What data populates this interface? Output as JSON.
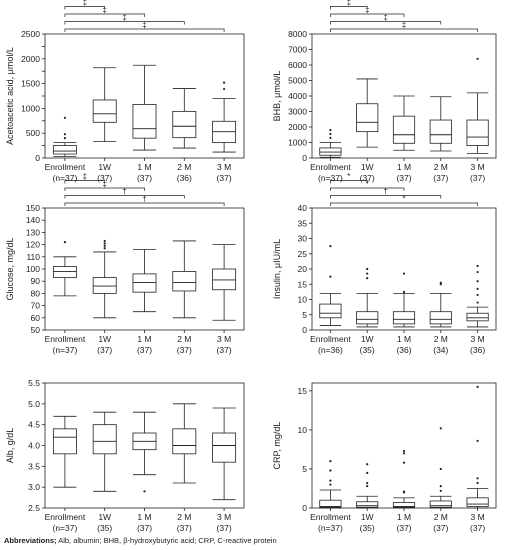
{
  "footer": {
    "label": "Abbreviations;",
    "text": "Alb, albumin; BHB, β-hydroxybutyric acid; CRP, C-reactive protein"
  },
  "chart_data": [
    {
      "type": "box",
      "ylabel": "Acetoacetic acid, μmol/L",
      "ylim": [
        0,
        2500
      ],
      "yticks": [
        0,
        250,
        500,
        750,
        1000,
        1250,
        1500,
        1750,
        2000,
        2250,
        2500
      ],
      "yticklabels": [
        "0",
        "",
        "500",
        "",
        "1000",
        "",
        "1500",
        "",
        "2000",
        "",
        "2500"
      ],
      "categories": [
        "Enrollment",
        "1W",
        "1 M",
        "2 M",
        "3 M"
      ],
      "n_labels": [
        "(n=37)",
        "(37)",
        "(37)",
        "(36)",
        "(37)"
      ],
      "boxes": [
        {
          "wlo": 30,
          "q1": 80,
          "med": 140,
          "q3": 250,
          "whi": 310,
          "outliers": [
            400,
            480,
            810
          ]
        },
        {
          "wlo": 330,
          "q1": 720,
          "med": 890,
          "q3": 1170,
          "whi": 1820,
          "outliers": []
        },
        {
          "wlo": 160,
          "q1": 400,
          "med": 590,
          "q3": 1080,
          "whi": 1870,
          "outliers": []
        },
        {
          "wlo": 200,
          "q1": 410,
          "med": 640,
          "q3": 940,
          "whi": 1400,
          "outliers": []
        },
        {
          "wlo": 120,
          "q1": 310,
          "med": 530,
          "q3": 740,
          "whi": 1200,
          "outliers": [
            1390,
            1520
          ]
        }
      ],
      "brackets": [
        {
          "to": 1,
          "sig": "‡"
        },
        {
          "to": 2,
          "sig": "‡"
        },
        {
          "to": 3,
          "sig": "‡"
        },
        {
          "to": 4,
          "sig": "‡"
        }
      ]
    },
    {
      "type": "box",
      "ylabel": "BHB, μmol/L",
      "ylim": [
        0,
        8000
      ],
      "yticks": [
        0,
        1000,
        2000,
        3000,
        4000,
        5000,
        6000,
        7000,
        8000
      ],
      "yticklabels": [
        "0",
        "1000",
        "2000",
        "3000",
        "4000",
        "5000",
        "6000",
        "7000",
        "8000"
      ],
      "categories": [
        "Enrollment",
        "1W",
        "1 M",
        "2 M",
        "3 M"
      ],
      "n_labels": [
        "(n=37)",
        "(37)",
        "(37)",
        "(37)",
        "(37)"
      ],
      "boxes": [
        {
          "wlo": 50,
          "q1": 180,
          "med": 380,
          "q3": 650,
          "whi": 1000,
          "outliers": [
            1300,
            1550,
            1800
          ]
        },
        {
          "wlo": 700,
          "q1": 1700,
          "med": 2300,
          "q3": 3500,
          "whi": 5100,
          "outliers": []
        },
        {
          "wlo": 500,
          "q1": 950,
          "med": 1500,
          "q3": 2700,
          "whi": 4000,
          "outliers": []
        },
        {
          "wlo": 450,
          "q1": 950,
          "med": 1500,
          "q3": 2450,
          "whi": 3950,
          "outliers": []
        },
        {
          "wlo": 300,
          "q1": 800,
          "med": 1350,
          "q3": 2450,
          "whi": 4200,
          "outliers": [
            6400
          ]
        }
      ],
      "brackets": [
        {
          "to": 1,
          "sig": "‡"
        },
        {
          "to": 2,
          "sig": "‡"
        },
        {
          "to": 3,
          "sig": "‡"
        },
        {
          "to": 4,
          "sig": "‡"
        }
      ]
    },
    {
      "type": "box",
      "ylabel": "Glucose, mg/dL",
      "ylim": [
        50,
        150
      ],
      "yticks": [
        50,
        60,
        70,
        80,
        90,
        100,
        110,
        120,
        130,
        140,
        150
      ],
      "yticklabels": [
        "50",
        "60",
        "70",
        "80",
        "90",
        "100",
        "110",
        "120",
        "130",
        "140",
        "150"
      ],
      "categories": [
        "Enrollment",
        "1W",
        "1 M",
        "2 M",
        "3 M"
      ],
      "n_labels": [
        "(n=37)",
        "(37)",
        "(37)",
        "(37)",
        "(37)"
      ],
      "boxes": [
        {
          "wlo": 78,
          "q1": 93,
          "med": 98,
          "q3": 102,
          "whi": 110,
          "outliers": [
            122
          ]
        },
        {
          "wlo": 60,
          "q1": 80,
          "med": 86,
          "q3": 93,
          "whi": 114,
          "outliers": [
            117,
            119,
            121,
            123
          ]
        },
        {
          "wlo": 65,
          "q1": 81,
          "med": 89,
          "q3": 96,
          "whi": 116,
          "outliers": []
        },
        {
          "wlo": 60,
          "q1": 82,
          "med": 89,
          "q3": 98,
          "whi": 123,
          "outliers": []
        },
        {
          "wlo": 58,
          "q1": 83,
          "med": 91,
          "q3": 100,
          "whi": 120,
          "outliers": []
        }
      ],
      "brackets": [
        {
          "to": 1,
          "sig": "‡"
        },
        {
          "to": 2,
          "sig": "‡"
        },
        {
          "to": 3,
          "sig": "†"
        },
        {
          "to": 4,
          "sig": "†"
        }
      ]
    },
    {
      "type": "box",
      "ylabel": "Insulin, μIU/mL",
      "ylim": [
        0,
        40
      ],
      "yticks": [
        0,
        5,
        10,
        15,
        20,
        25,
        30,
        35,
        40
      ],
      "yticklabels": [
        "0",
        "5",
        "10",
        "15",
        "20",
        "25",
        "30",
        "35",
        "40"
      ],
      "categories": [
        "Enrollment",
        "1W",
        "1 M",
        "2 M",
        "3 M"
      ],
      "n_labels": [
        "(n=36)",
        "(35)",
        "(36)",
        "(34)",
        "(36)"
      ],
      "boxes": [
        {
          "wlo": 1.5,
          "q1": 4.0,
          "med": 5.5,
          "q3": 8.5,
          "whi": 12.0,
          "outliers": [
            17.5,
            27.5
          ]
        },
        {
          "wlo": 1.0,
          "q1": 2.0,
          "med": 3.5,
          "q3": 6.0,
          "whi": 12.0,
          "outliers": [
            17.0,
            18.5,
            20.0
          ]
        },
        {
          "wlo": 1.0,
          "q1": 2.0,
          "med": 3.5,
          "q3": 6.0,
          "whi": 12.0,
          "outliers": [
            12.5,
            18.5
          ]
        },
        {
          "wlo": 1.0,
          "q1": 2.0,
          "med": 3.5,
          "q3": 6.0,
          "whi": 12.0,
          "outliers": [
            15.0,
            15.5
          ]
        },
        {
          "wlo": 1.0,
          "q1": 3.0,
          "med": 4.0,
          "q3": 5.5,
          "whi": 7.5,
          "outliers": [
            9.0,
            11.5,
            13.5,
            16.0,
            19.0,
            21.0
          ]
        }
      ],
      "brackets": [
        {
          "to": 1,
          "sig": "*"
        },
        {
          "to": 2,
          "sig": "*"
        },
        {
          "to": 3,
          "sig": "†"
        },
        {
          "to": 4,
          "sig": "*"
        }
      ]
    },
    {
      "type": "box",
      "ylabel": "Alb, g/dL",
      "ylim": [
        2.5,
        5.5
      ],
      "yticks": [
        2.5,
        3.0,
        3.5,
        4.0,
        4.5,
        5.0,
        5.5
      ],
      "yticklabels": [
        "2.5",
        "3.0",
        "3.5",
        "4.0",
        "4.5",
        "5.0",
        "5.5"
      ],
      "categories": [
        "Enrollment",
        "1W",
        "1 M",
        "2 M",
        "3 M"
      ],
      "n_labels": [
        "(n=37)",
        "(35)",
        "(37)",
        "(37)",
        "(37)"
      ],
      "boxes": [
        {
          "wlo": 3.0,
          "q1": 3.8,
          "med": 4.2,
          "q3": 4.4,
          "whi": 4.7,
          "outliers": []
        },
        {
          "wlo": 2.9,
          "q1": 3.8,
          "med": 4.1,
          "q3": 4.5,
          "whi": 4.8,
          "outliers": []
        },
        {
          "wlo": 3.3,
          "q1": 3.9,
          "med": 4.1,
          "q3": 4.3,
          "whi": 4.8,
          "outliers": [
            2.9
          ]
        },
        {
          "wlo": 3.1,
          "q1": 3.8,
          "med": 4.0,
          "q3": 4.4,
          "whi": 5.0,
          "outliers": []
        },
        {
          "wlo": 2.7,
          "q1": 3.6,
          "med": 4.0,
          "q3": 4.3,
          "whi": 4.9,
          "outliers": []
        }
      ],
      "brackets": []
    },
    {
      "type": "box",
      "ylabel": "CRP, mg/dL",
      "ylim": [
        0,
        16
      ],
      "yticks": [
        0,
        5,
        10,
        15
      ],
      "yticklabels": [
        "0",
        "5",
        "10",
        "15"
      ],
      "categories": [
        "Enrollment",
        "1W",
        "1 M",
        "2 M",
        "3 M"
      ],
      "n_labels": [
        "(n=37)",
        "(35)",
        "(37)",
        "(37)",
        "(37)"
      ],
      "boxes": [
        {
          "wlo": 0.0,
          "q1": 0.1,
          "med": 0.2,
          "q3": 1.0,
          "whi": 2.3,
          "outliers": [
            3.0,
            3.5,
            4.8,
            6.0
          ]
        },
        {
          "wlo": 0.0,
          "q1": 0.1,
          "med": 0.3,
          "q3": 0.8,
          "whi": 1.5,
          "outliers": [
            2.8,
            3.2,
            4.5,
            5.6
          ]
        },
        {
          "wlo": 0.0,
          "q1": 0.1,
          "med": 0.2,
          "q3": 0.7,
          "whi": 1.3,
          "outliers": [
            2.0,
            2.1,
            5.8,
            7.0,
            7.3
          ]
        },
        {
          "wlo": 0.0,
          "q1": 0.1,
          "med": 0.3,
          "q3": 0.9,
          "whi": 1.5,
          "outliers": [
            2.2,
            2.8,
            5.0,
            10.2
          ]
        },
        {
          "wlo": 0.0,
          "q1": 0.2,
          "med": 0.5,
          "q3": 1.3,
          "whi": 2.5,
          "outliers": [
            3.2,
            3.8,
            8.6,
            15.5
          ]
        }
      ],
      "brackets": []
    }
  ]
}
